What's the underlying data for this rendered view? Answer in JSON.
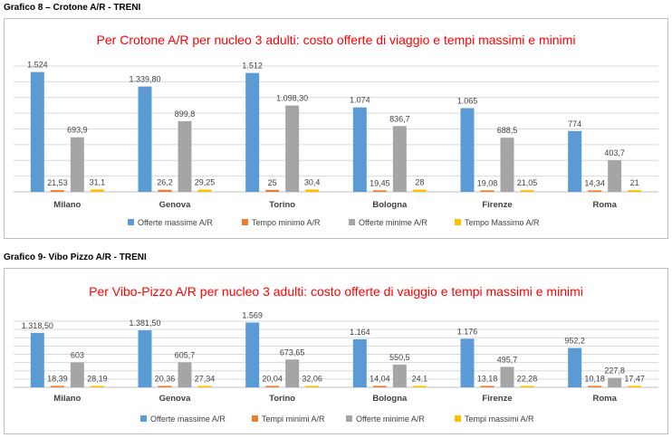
{
  "charts": [
    {
      "caption": "Grafico 8 – Crotone A/R - TRENI",
      "chart_data": {
        "type": "bar",
        "title": "Per Crotone A/R per nucleo 3 adulti: costo offerte di viaggio e tempi massimi e minimi",
        "xlabel": "",
        "ylabel": "",
        "categories": [
          "Milano",
          "Genova",
          "Torino",
          "Bologna",
          "Firenze",
          "Roma"
        ],
        "ylim": [
          0,
          1600
        ],
        "grid": true,
        "legend": "bottom",
        "series": [
          {
            "name": "Offerte massime A/R",
            "color": "#5b9bd5",
            "values": [
              1524,
              1339.8,
              1512,
              1074,
              1065,
              774
            ],
            "labels": [
              "1.524",
              "1.339,80",
              "1.512",
              "1.074",
              "1.065",
              "774"
            ]
          },
          {
            "name": "Tempo minimo A/R",
            "color": "#ed7d31",
            "values": [
              21.53,
              26.2,
              25,
              19.45,
              19.08,
              14.34
            ],
            "labels": [
              "21,53",
              "26,2",
              "25",
              "19,45",
              "19,08",
              "14,34"
            ]
          },
          {
            "name": "Offerte minime A/R",
            "color": "#a5a5a5",
            "values": [
              693.9,
              899.8,
              1098.3,
              836.7,
              688.5,
              403.7
            ],
            "labels": [
              "693,9",
              "899,8",
              "1.098,30",
              "836,7",
              "688,5",
              "403,7"
            ]
          },
          {
            "name": "Tempo Massimo A/R",
            "color": "#ffc000",
            "values": [
              31.1,
              29.25,
              30.4,
              28,
              21.05,
              21
            ],
            "labels": [
              "31,1",
              "29,25",
              "30,4",
              "28",
              "21,05",
              "21"
            ]
          }
        ],
        "highlight": {
          "series": 0,
          "index": 2,
          "color": "#ff0000"
        }
      }
    },
    {
      "caption": "Grafico 9- Vibo Pizzo A/R - TRENI",
      "chart_data": {
        "type": "bar",
        "title": "Per Vibo-Pizzo A/R per nucleo 3 adulti: costo offerte di vaiggio e tempi massimi e minimi",
        "xlabel": "",
        "ylabel": "",
        "categories": [
          "Milano",
          "Genova",
          "Torino",
          "Bologna",
          "Firenze",
          "Roma"
        ],
        "ylim": [
          0,
          1600
        ],
        "grid": true,
        "legend": "bottom",
        "series": [
          {
            "name": "Offerte massime A/R",
            "color": "#5b9bd5",
            "values": [
              1318.5,
              1381.5,
              1569,
              1164,
              1176,
              952.2
            ],
            "labels": [
              "1.318,50",
              "1.381,50",
              "1.569",
              "1.164",
              "1.176",
              "952,2"
            ]
          },
          {
            "name": "Tempi minimi A/R",
            "color": "#ed7d31",
            "values": [
              18.39,
              20.36,
              20.04,
              14.04,
              13.18,
              10.18
            ],
            "labels": [
              "18,39",
              "20,36",
              "20,04",
              "14,04",
              "13,18",
              "10,18"
            ]
          },
          {
            "name": "Offerte minime A/R",
            "color": "#a5a5a5",
            "values": [
              603,
              605.7,
              673.65,
              550.5,
              495.7,
              227.8
            ],
            "labels": [
              "603",
              "605,7",
              "673,65",
              "550,5",
              "495,7",
              "227,8"
            ]
          },
          {
            "name": "Tempi massimi A/R",
            "color": "#ffc000",
            "values": [
              28.19,
              27.34,
              32.06,
              24.1,
              22.28,
              17.47
            ],
            "labels": [
              "28,19",
              "27,34",
              "32,06",
              "24,1",
              "22,28",
              "17,47"
            ]
          }
        ],
        "highlight": {
          "series": 0,
          "index": 2,
          "color": "#ff0000"
        }
      }
    }
  ]
}
